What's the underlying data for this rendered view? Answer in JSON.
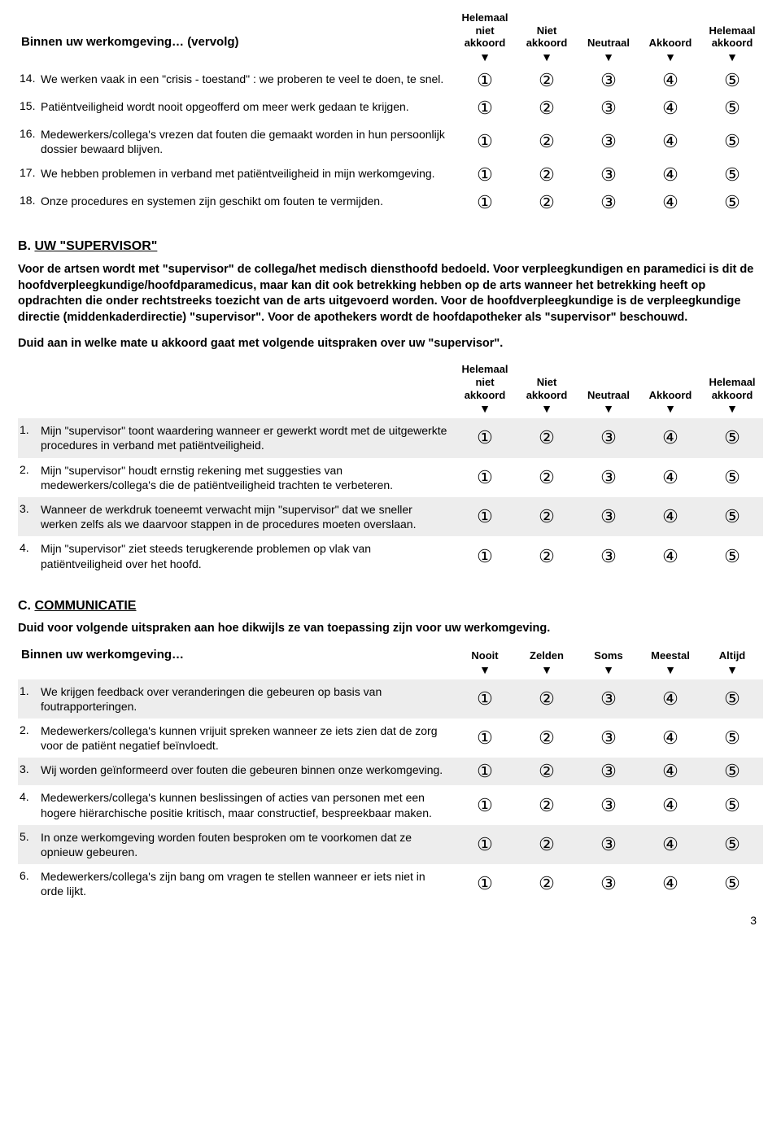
{
  "likert_glyphs": [
    "①",
    "②",
    "③",
    "④",
    "⑤"
  ],
  "arrow": "▼",
  "sectionA": {
    "title": "Binnen uw werkomgeving… (vervolg)",
    "headers": [
      "Helemaal niet akkoord",
      "Niet akkoord",
      "Neutraal",
      "Akkoord",
      "Helemaal akkoord"
    ],
    "items": [
      {
        "n": "14.",
        "t": "We werken vaak in een \"crisis - toestand\" : we proberen te veel te doen, te snel."
      },
      {
        "n": "15.",
        "t": "Patiëntveiligheid wordt nooit opgeofferd om meer werk gedaan te krijgen."
      },
      {
        "n": "16.",
        "t": "Medewerkers/collega's vrezen dat fouten die gemaakt worden in hun persoonlijk dossier bewaard blijven."
      },
      {
        "n": "17.",
        "t": "We hebben problemen in verband met patiëntveiligheid in mijn werkomgeving."
      },
      {
        "n": "18.",
        "t": "Onze procedures en systemen zijn geschikt om fouten te vermijden."
      }
    ]
  },
  "sectionB": {
    "heading_prefix": "B. ",
    "heading_text": "UW \"SUPERVISOR\"",
    "explanation": "Voor de artsen wordt met \"supervisor\" de collega/het medisch diensthoofd bedoeld. Voor verpleegkundigen en paramedici is dit de hoofdverpleegkundige/hoofdparamedicus, maar kan dit ook betrekking hebben op de arts wanneer het betrekking heeft op opdrachten die onder rechtstreeks toezicht van de arts uitgevoerd worden. Voor de hoofdverpleegkundige is de verpleegkundige directie (middenkaderdirectie) \"supervisor\". Voor de apothekers wordt de hoofdapotheker als \"supervisor\" beschouwd.",
    "instruction": "Duid aan in welke mate u akkoord gaat met volgende uitspraken over uw \"supervisor\".",
    "headers": [
      "Helemaal niet akkoord",
      "Niet akkoord",
      "Neutraal",
      "Akkoord",
      "Helemaal akkoord"
    ],
    "items": [
      {
        "n": "1.",
        "t": "Mijn \"supervisor\" toont waardering wanneer er gewerkt wordt met de uitgewerkte procedures in verband met patiëntveiligheid.",
        "shaded": true
      },
      {
        "n": "2.",
        "t": "Mijn \"supervisor\" houdt ernstig rekening met suggesties van medewerkers/collega's die de patiëntveiligheid trachten te verbeteren.",
        "shaded": false
      },
      {
        "n": "3.",
        "t": "Wanneer de werkdruk toeneemt verwacht mijn \"supervisor\" dat we sneller werken zelfs als we daarvoor stappen in de procedures moeten overslaan.",
        "shaded": true
      },
      {
        "n": "4.",
        "t": "Mijn \"supervisor\" ziet steeds terugkerende problemen op vlak van patiëntveiligheid over het hoofd.",
        "shaded": false
      }
    ]
  },
  "sectionC": {
    "heading_prefix": "C. ",
    "heading_text": "COMMUNICATIE",
    "instruction": "Duid voor volgende uitspraken aan hoe dikwijls ze van toepassing zijn voor uw werkomgeving.",
    "leftheader": "Binnen uw werkomgeving…",
    "headers": [
      "Nooit",
      "Zelden",
      "Soms",
      "Meestal",
      "Altijd"
    ],
    "items": [
      {
        "n": "1.",
        "t": "We krijgen feedback over veranderingen die gebeuren op basis van foutrapporteringen.",
        "shaded": true
      },
      {
        "n": "2.",
        "t": "Medewerkers/collega's kunnen vrijuit spreken wanneer ze iets zien dat de zorg voor de patiënt negatief beïnvloedt.",
        "shaded": false
      },
      {
        "n": "3.",
        "t": "Wij worden geïnformeerd over fouten die gebeuren binnen onze werkomgeving.",
        "shaded": true
      },
      {
        "n": "4.",
        "t": "Medewerkers/collega's kunnen beslissingen of acties  van personen met een hogere hiërarchische positie kritisch, maar constructief, bespreekbaar maken.",
        "shaded": false
      },
      {
        "n": "5.",
        "t": "In onze werkomgeving worden fouten besproken om te voorkomen dat ze opnieuw gebeuren.",
        "shaded": true
      },
      {
        "n": "6.",
        "t": "Medewerkers/collega's zijn bang om vragen te stellen wanneer er iets niet in orde lijkt.",
        "shaded": false
      }
    ]
  },
  "page_number": "3"
}
